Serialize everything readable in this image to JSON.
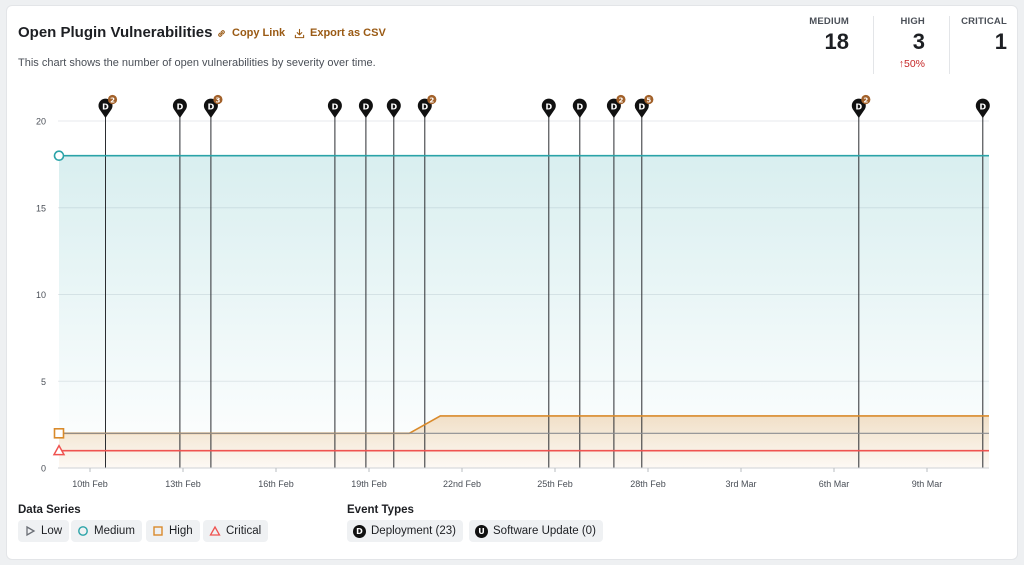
{
  "header": {
    "title": "Open Plugin Vulnerabilities",
    "copy_link": "Copy Link",
    "export_csv": "Export as CSV",
    "subtitle": "This chart shows the number of open vulnerabilities by severity over time."
  },
  "stats": [
    {
      "label": "MEDIUM",
      "value": "18",
      "delta": ""
    },
    {
      "label": "HIGH",
      "value": "3",
      "delta": "50%"
    },
    {
      "label": "CRITICAL",
      "value": "1",
      "delta": ""
    }
  ],
  "colors": {
    "medium": "#2aa3a8",
    "high": "#d98a2b",
    "critical": "#ef5350",
    "low": "#6b6f76",
    "accent": "#9a5a14",
    "delta_up": "#c62828"
  },
  "chart_data": {
    "type": "area",
    "x_ticks": [
      "10th Feb",
      "13th Feb",
      "16th Feb",
      "19th Feb",
      "22nd Feb",
      "25th Feb",
      "28th Feb",
      "3rd Mar",
      "6th Mar",
      "9th Mar"
    ],
    "y_ticks": [
      "0",
      "5",
      "10",
      "15",
      "20"
    ],
    "ylim": [
      0,
      20
    ],
    "x_range_days": [
      9,
      39
    ],
    "series": [
      {
        "name": "Medium",
        "points": [
          [
            9,
            18
          ],
          [
            39,
            18
          ]
        ]
      },
      {
        "name": "High",
        "points": [
          [
            9,
            2
          ],
          [
            20.3,
            2
          ],
          [
            21.3,
            3
          ],
          [
            39,
            3
          ]
        ]
      },
      {
        "name": "Critical",
        "points": [
          [
            9,
            1
          ],
          [
            39,
            1
          ]
        ]
      }
    ],
    "events": [
      {
        "day": 10.5,
        "type": "D",
        "count": "2"
      },
      {
        "day": 12.9,
        "type": "D",
        "count": ""
      },
      {
        "day": 13.9,
        "type": "D",
        "count": "3"
      },
      {
        "day": 17.9,
        "type": "D",
        "count": ""
      },
      {
        "day": 18.9,
        "type": "D",
        "count": ""
      },
      {
        "day": 19.8,
        "type": "D",
        "count": ""
      },
      {
        "day": 20.8,
        "type": "D",
        "count": "2"
      },
      {
        "day": 24.8,
        "type": "D",
        "count": ""
      },
      {
        "day": 25.8,
        "type": "D",
        "count": ""
      },
      {
        "day": 26.9,
        "type": "D",
        "count": "2"
      },
      {
        "day": 27.8,
        "type": "D",
        "count": "5"
      },
      {
        "day": 34.8,
        "type": "D",
        "count": "2"
      },
      {
        "day": 38.8,
        "type": "D",
        "count": ""
      }
    ],
    "grid": true
  },
  "legend": {
    "series_title": "Data Series",
    "series": [
      {
        "label": "Low",
        "icon": "triangle-right-icon"
      },
      {
        "label": "Medium",
        "icon": "circle-icon"
      },
      {
        "label": "High",
        "icon": "square-icon"
      },
      {
        "label": "Critical",
        "icon": "triangle-up-icon"
      }
    ],
    "events_title": "Event Types",
    "events": [
      {
        "badge": "D",
        "label": "Deployment (23)"
      },
      {
        "badge": "U",
        "label": "Software Update (0)"
      }
    ]
  }
}
